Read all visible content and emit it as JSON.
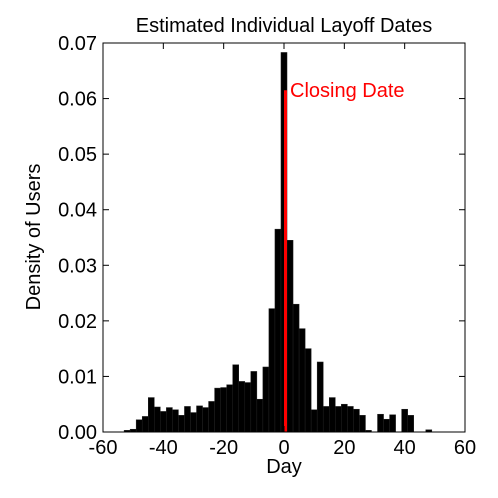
{
  "chart_data": {
    "type": "bar",
    "title": "Estimated Individual Layoff Dates",
    "xlabel": "Day",
    "ylabel": "Density of Users",
    "xlim": [
      -60,
      60
    ],
    "ylim": [
      0,
      0.07
    ],
    "grid": false,
    "x_ticks": [
      "-60",
      "-40",
      "-20",
      "0",
      "20",
      "40",
      "60"
    ],
    "y_ticks": [
      "0.00",
      "0.01",
      "0.02",
      "0.03",
      "0.04",
      "0.05",
      "0.06",
      "0.07"
    ],
    "bin_width": 2,
    "series": [
      {
        "color": "#000000",
        "bins": [
          {
            "x": -52,
            "value": 0.0003
          },
          {
            "x": -50,
            "value": 0.0005
          },
          {
            "x": -48,
            "value": 0.0022
          },
          {
            "x": -46,
            "value": 0.0028
          },
          {
            "x": -44,
            "value": 0.0062
          },
          {
            "x": -42,
            "value": 0.0045
          },
          {
            "x": -40,
            "value": 0.0037
          },
          {
            "x": -38,
            "value": 0.0044
          },
          {
            "x": -36,
            "value": 0.004
          },
          {
            "x": -34,
            "value": 0.003
          },
          {
            "x": -32,
            "value": 0.0046
          },
          {
            "x": -30,
            "value": 0.0035
          },
          {
            "x": -28,
            "value": 0.0047
          },
          {
            "x": -26,
            "value": 0.0044
          },
          {
            "x": -24,
            "value": 0.0055
          },
          {
            "x": -22,
            "value": 0.0079
          },
          {
            "x": -20,
            "value": 0.008
          },
          {
            "x": -18,
            "value": 0.0085
          },
          {
            "x": -16,
            "value": 0.0121
          },
          {
            "x": -14,
            "value": 0.0091
          },
          {
            "x": -12,
            "value": 0.0089
          },
          {
            "x": -10,
            "value": 0.0109
          },
          {
            "x": -8,
            "value": 0.0059
          },
          {
            "x": -6,
            "value": 0.0117
          },
          {
            "x": -4,
            "value": 0.0222
          },
          {
            "x": -2,
            "value": 0.0365
          },
          {
            "x": 0,
            "value": 0.0683
          },
          {
            "x": 2,
            "value": 0.0345
          },
          {
            "x": 4,
            "value": 0.023
          },
          {
            "x": 6,
            "value": 0.0186
          },
          {
            "x": 8,
            "value": 0.015
          },
          {
            "x": 10,
            "value": 0.004
          },
          {
            "x": 12,
            "value": 0.0126
          },
          {
            "x": 14,
            "value": 0.0046
          },
          {
            "x": 16,
            "value": 0.0062
          },
          {
            "x": 18,
            "value": 0.0046
          },
          {
            "x": 20,
            "value": 0.005
          },
          {
            "x": 22,
            "value": 0.0046
          },
          {
            "x": 24,
            "value": 0.0041
          },
          {
            "x": 26,
            "value": 0.003
          },
          {
            "x": 28,
            "value": 0.0003
          },
          {
            "x": 32,
            "value": 0.0032
          },
          {
            "x": 34,
            "value": 0.0023
          },
          {
            "x": 36,
            "value": 0.0031
          },
          {
            "x": 40,
            "value": 0.0041
          },
          {
            "x": 42,
            "value": 0.003
          },
          {
            "x": 48,
            "value": 0.0004
          }
        ]
      }
    ],
    "marker": {
      "x": 0,
      "width": 1,
      "value": 0.0615,
      "color": "#ff0000",
      "label": "Closing Date"
    }
  }
}
